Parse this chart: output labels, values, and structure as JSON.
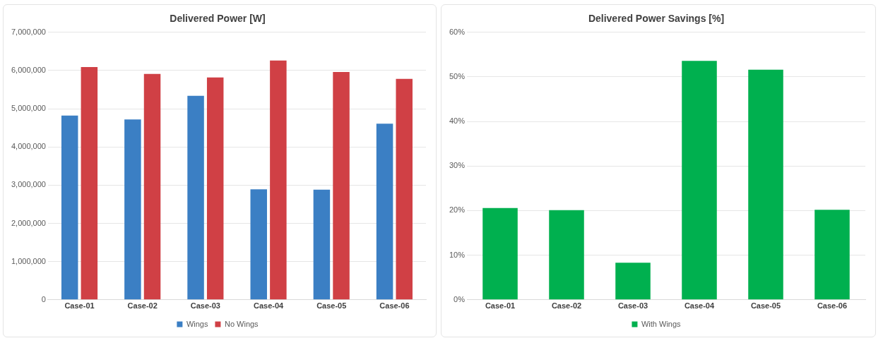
{
  "chart_data": [
    {
      "type": "bar",
      "title": "Delivered Power [W]",
      "categories": [
        "Case-01",
        "Case-02",
        "Case-03",
        "Case-04",
        "Case-05",
        "Case-06"
      ],
      "series": [
        {
          "name": "Wings",
          "color": "#3b7fc4",
          "values": [
            4820000,
            4720000,
            5340000,
            2890000,
            2880000,
            4610000
          ]
        },
        {
          "name": "No Wings",
          "color": "#d04045",
          "values": [
            6090000,
            5910000,
            5820000,
            6260000,
            5960000,
            5780000
          ]
        }
      ],
      "ylim": [
        0,
        7000000
      ],
      "yticks": [
        {
          "value": 0,
          "label": "0"
        },
        {
          "value": 1000000,
          "label": "1,000,000"
        },
        {
          "value": 2000000,
          "label": "2,000,000"
        },
        {
          "value": 3000000,
          "label": "3,000,000"
        },
        {
          "value": 4000000,
          "label": "4,000,000"
        },
        {
          "value": 5000000,
          "label": "5,000,000"
        },
        {
          "value": 6000000,
          "label": "6,000,000"
        },
        {
          "value": 7000000,
          "label": "7,000,000"
        }
      ],
      "grid": "y",
      "legend": "bottom"
    },
    {
      "type": "bar",
      "title": "Delivered Power Savings [%]",
      "categories": [
        "Case-01",
        "Case-02",
        "Case-03",
        "Case-04",
        "Case-05",
        "Case-06"
      ],
      "series": [
        {
          "name": "With Wings",
          "color": "#00b04f",
          "values": [
            20.6,
            20.1,
            8.3,
            53.6,
            51.6,
            20.2
          ]
        }
      ],
      "ylim": [
        0,
        60
      ],
      "yticks": [
        {
          "value": 0,
          "label": "0%"
        },
        {
          "value": 10,
          "label": "10%"
        },
        {
          "value": 20,
          "label": "20%"
        },
        {
          "value": 30,
          "label": "30%"
        },
        {
          "value": 40,
          "label": "40%"
        },
        {
          "value": 50,
          "label": "50%"
        },
        {
          "value": 60,
          "label": "60%"
        }
      ],
      "grid": "y",
      "legend": "bottom"
    }
  ]
}
